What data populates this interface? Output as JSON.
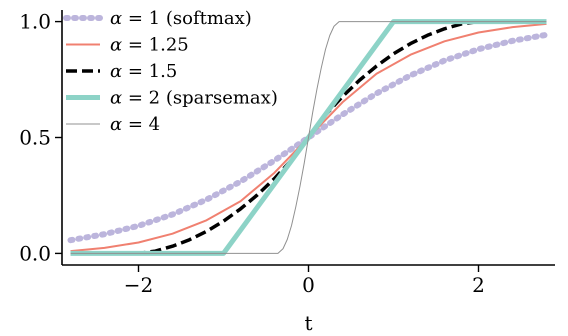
{
  "chart_data": {
    "type": "line",
    "xlabel": "t",
    "ylabel": "",
    "xlim": [
      -2.9,
      2.9
    ],
    "ylim": [
      -0.05,
      1.05
    ],
    "xticks": [
      -2,
      0,
      2
    ],
    "yticks": [
      0.0,
      0.5,
      1.0
    ],
    "xtick_labels": [
      "−2",
      "0",
      "2"
    ],
    "ytick_labels": [
      "0.0",
      "0.5",
      "1.0"
    ],
    "grid": false,
    "legend_position": "top-left",
    "series": [
      {
        "name": "α = 1 (softmax)",
        "alpha_text": "α",
        "rest_text": " = 1 (softmax)",
        "color": "#bcb5dc",
        "style": "dotted",
        "x": [
          -2.8,
          -2.4,
          -2.0,
          -1.6,
          -1.2,
          -0.8,
          -0.4,
          0.0,
          0.4,
          0.8,
          1.2,
          1.6,
          2.0,
          2.4,
          2.8
        ],
        "y": [
          0.057,
          0.083,
          0.119,
          0.168,
          0.232,
          0.31,
          0.401,
          0.5,
          0.599,
          0.69,
          0.768,
          0.832,
          0.881,
          0.917,
          0.943
        ]
      },
      {
        "name": "α = 1.25",
        "alpha_text": "α",
        "rest_text": " = 1.25",
        "color": "#f08070",
        "style": "solid",
        "x": [
          -2.8,
          -2.4,
          -2.0,
          -1.6,
          -1.2,
          -0.8,
          -0.4,
          0.0,
          0.4,
          0.8,
          1.2,
          1.6,
          2.0,
          2.4,
          2.8
        ],
        "y": [
          0.01,
          0.024,
          0.047,
          0.085,
          0.143,
          0.225,
          0.348,
          0.5,
          0.652,
          0.775,
          0.857,
          0.915,
          0.953,
          0.976,
          0.99
        ]
      },
      {
        "name": "α = 1.5",
        "alpha_text": "α",
        "rest_text": " = 1.5",
        "color": "#000000",
        "style": "dashed",
        "x": [
          -2.8,
          -2.0,
          -1.8,
          -1.6,
          -1.4,
          -1.2,
          -1.0,
          -0.8,
          -0.6,
          -0.4,
          -0.2,
          0.0,
          0.2,
          0.4,
          0.6,
          0.8,
          1.0,
          1.2,
          1.4,
          1.6,
          1.8,
          2.0,
          2.8
        ],
        "y": [
          0.0,
          0.0,
          0.01,
          0.031,
          0.059,
          0.095,
          0.139,
          0.192,
          0.253,
          0.323,
          0.403,
          0.5,
          0.597,
          0.677,
          0.747,
          0.808,
          0.861,
          0.905,
          0.941,
          0.969,
          0.99,
          1.0,
          1.0
        ]
      },
      {
        "name": "α = 2 (sparsemax)",
        "alpha_text": "α",
        "rest_text": " = 2 (sparsemax)",
        "color": "#8dd3c7",
        "style": "solid-thick",
        "x": [
          -2.8,
          -1.0,
          1.0,
          2.8
        ],
        "y": [
          0.0,
          0.0,
          1.0,
          1.0
        ]
      },
      {
        "name": "α = 4",
        "alpha_text": "α",
        "rest_text": " = 4",
        "color": "#909090",
        "style": "solid-thin",
        "x": [
          -2.8,
          -0.36,
          -0.3,
          -0.25,
          -0.2,
          -0.15,
          -0.1,
          -0.05,
          0.0,
          0.05,
          0.1,
          0.15,
          0.2,
          0.25,
          0.3,
          0.36,
          2.8
        ],
        "y": [
          0.0,
          0.0,
          0.02,
          0.06,
          0.12,
          0.2,
          0.29,
          0.39,
          0.5,
          0.61,
          0.71,
          0.8,
          0.88,
          0.94,
          0.98,
          1.0,
          1.0
        ]
      }
    ]
  }
}
